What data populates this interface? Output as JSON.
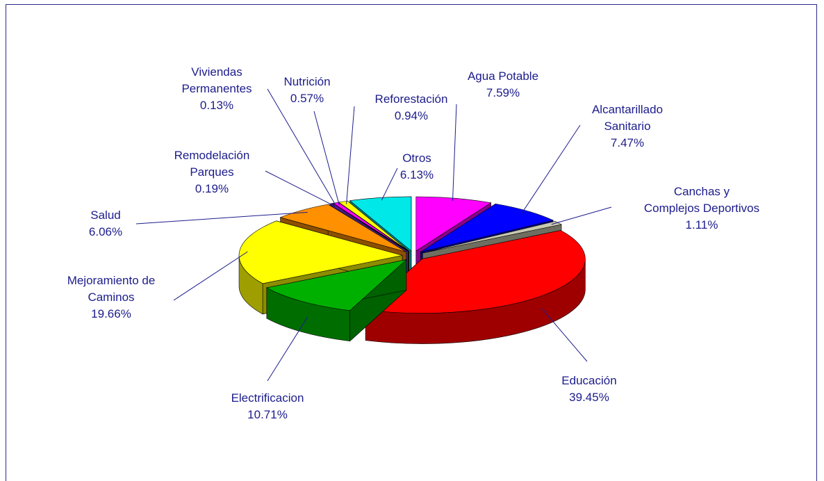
{
  "chart_data": {
    "type": "pie3d",
    "categories": [
      "Agua Potable",
      "Alcantarillado\nSanitario",
      "Canchas y\nComplejos Deportivos",
      "Educación",
      "Electrificacion",
      "Mejoramiento de\nCaminos",
      "Salud",
      "Remodelación\nParques",
      "Viviendas\nPermanentes",
      "Nutrición",
      "Reforestación",
      "Otros"
    ],
    "values": [
      7.59,
      7.47,
      1.11,
      39.45,
      10.71,
      19.66,
      6.06,
      0.19,
      0.13,
      0.57,
      0.94,
      6.13
    ],
    "value_labels": [
      "7.59%",
      "7.47%",
      "1.11%",
      "39.45%",
      "10.71%",
      "19.66%",
      "6.06%",
      "0.19%",
      "0.13%",
      "0.57%",
      "0.94%",
      "6.13%"
    ],
    "colors": [
      "#ff00ff",
      "#0000ff",
      "#c8c8b0",
      "#ff0000",
      "#00b000",
      "#ffff00",
      "#ff9000",
      "#8040ff",
      "#ff00ff",
      "#ff00ff",
      "#ffff00",
      "#00e8e8"
    ]
  }
}
